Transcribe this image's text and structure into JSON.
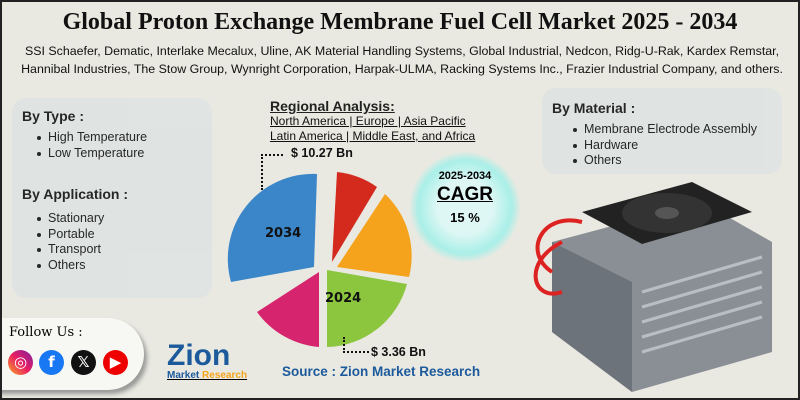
{
  "title": "Global Proton Exchange Membrane Fuel Cell Market 2025 - 2034",
  "companies": "SSI Schaefer, Dematic, Interlake Mecalux, Uline, AK Material Handling Systems, Global Industrial, Nedcon, Ridg-U-Rak, Kardex Remstar, Hannibal Industries, The Stow Group, Wynright Corporation, Harpak-ULMA, Racking Systems Inc., Frazier Industrial Company, and others.",
  "by_type": {
    "heading": "By Type :",
    "items": [
      "High Temperature",
      "Low Temperature"
    ]
  },
  "by_application": {
    "heading": "By Application :",
    "items": [
      "Stationary",
      "Portable",
      "Transport",
      "Others"
    ]
  },
  "by_material": {
    "heading": "By Material :",
    "items": [
      "Membrane Electrode Assembly",
      "Hardware",
      "Others"
    ]
  },
  "regional": {
    "heading": "Regional Analysis:",
    "line1": "North America | Europe | Asia Pacific",
    "line2": "Latin America | Middle East, and Africa"
  },
  "cagr": {
    "period": "2025-2034",
    "label": "CAGR",
    "value": "15 %"
  },
  "chart": {
    "value_2034": "$ 10.27 Bn",
    "value_2024": "$ 3.36 Bn",
    "label_2034": "2034",
    "label_2024": "2024",
    "colors": [
      "#3a86c8",
      "#d42a1e",
      "#f5a21c",
      "#8cc63f",
      "#d6246e"
    ]
  },
  "follow": {
    "label": "Follow Us :",
    "icons": [
      "instagram-icon",
      "facebook-icon",
      "x-icon",
      "youtube-icon"
    ]
  },
  "logo": {
    "name": "Zion",
    "sub1": "Market",
    "sub2": "Research"
  },
  "source": "Source : Zion Market Research"
}
